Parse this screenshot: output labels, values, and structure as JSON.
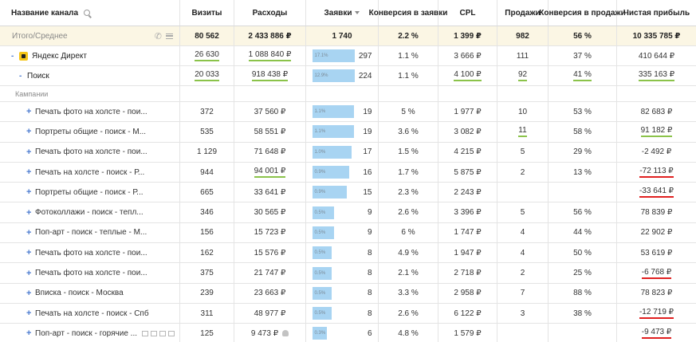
{
  "header": {
    "channel": "Название канала",
    "visits": "Визиты",
    "expenses": "Расходы",
    "leads": "Заявки",
    "conv_leads": "Конверсия в заявки",
    "cpl": "CPL",
    "sales": "Продажи",
    "conv_sales": "Конверсия в продажи",
    "profit": "Чистая прибыль"
  },
  "total": {
    "label": "Итого/Среднее",
    "visits": "80 562",
    "expenses": "2 433 886 ₽",
    "leads": "1 740",
    "conv_leads": "2.2 %",
    "cpl": "1 399 ₽",
    "sales": "982",
    "conv_sales": "56 %",
    "profit": "10 335 785 ₽"
  },
  "levels": [
    {
      "toggle": "-",
      "name": "Яндекс Директ",
      "visits": "26 630",
      "expenses": "1 088 840 ₽",
      "lead_pct": "17.1%",
      "lead_fill": 0.71,
      "leads": "297",
      "conv_leads": "1.1 %",
      "cpl": "3 666 ₽",
      "sales": "111",
      "conv_sales": "37 %",
      "profit": "410 644 ₽"
    },
    {
      "toggle": "-",
      "name": "Поиск",
      "visits": "20 033",
      "expenses": "918 438 ₽",
      "lead_pct": "12.9%",
      "lead_fill": 0.71,
      "leads": "224",
      "conv_leads": "1.1 %",
      "cpl": "4 100 ₽",
      "sales": "92",
      "conv_sales": "41 %",
      "profit": "335 163 ₽"
    }
  ],
  "section_label": "Кампании",
  "campaigns": [
    {
      "name": "Печать фото на холсте - пои...",
      "visits": "372",
      "expenses": "37 560 ₽",
      "lead_pct": "1.1%",
      "lead_fill": 0.7,
      "leads": "19",
      "conv_leads": "5 %",
      "cpl": "1 977 ₽",
      "sales": "10",
      "conv_sales": "53 %",
      "profit": "82 683 ₽"
    },
    {
      "name": "Портреты общие - поиск - М...",
      "visits": "535",
      "expenses": "58 551 ₽",
      "lead_pct": "1.1%",
      "lead_fill": 0.7,
      "leads": "19",
      "conv_leads": "3.6 %",
      "cpl": "3 082 ₽",
      "sales": "11",
      "conv_sales": "58 %",
      "profit": "91 182 ₽"
    },
    {
      "name": "Печать фото на холсте - пои...",
      "visits": "1 129",
      "expenses": "71 648 ₽",
      "lead_pct": "1.0%",
      "lead_fill": 0.66,
      "leads": "17",
      "conv_leads": "1.5 %",
      "cpl": "4 215 ₽",
      "sales": "5",
      "conv_sales": "29 %",
      "profit": "-2 492 ₽"
    },
    {
      "name": "Печать на холсте - поиск - Р...",
      "visits": "944",
      "expenses": "94 001 ₽",
      "lead_pct": "0.9%",
      "lead_fill": 0.62,
      "leads": "16",
      "conv_leads": "1.7 %",
      "cpl": "5 875 ₽",
      "sales": "2",
      "conv_sales": "13 %",
      "profit": "-72 113 ₽"
    },
    {
      "name": "Портреты общие - поиск - Р...",
      "visits": "665",
      "expenses": "33 641 ₽",
      "lead_pct": "0.9%",
      "lead_fill": 0.58,
      "leads": "15",
      "conv_leads": "2.3 %",
      "cpl": "2 243 ₽",
      "sales": "",
      "conv_sales": "",
      "profit": "-33 641 ₽"
    },
    {
      "name": "Фотоколлажи - поиск - тепл...",
      "visits": "346",
      "expenses": "30 565 ₽",
      "lead_pct": "0.5%",
      "lead_fill": 0.36,
      "leads": "9",
      "conv_leads": "2.6 %",
      "cpl": "3 396 ₽",
      "sales": "5",
      "conv_sales": "56 %",
      "profit": "78 839 ₽"
    },
    {
      "name": "Поп-арт - поиск - теплые - М...",
      "visits": "156",
      "expenses": "15 723 ₽",
      "lead_pct": "0.5%",
      "lead_fill": 0.36,
      "leads": "9",
      "conv_leads": "6 %",
      "cpl": "1 747 ₽",
      "sales": "4",
      "conv_sales": "44 %",
      "profit": "22 902 ₽"
    },
    {
      "name": "Печать фото на холсте - пои...",
      "visits": "162",
      "expenses": "15 576 ₽",
      "lead_pct": "0.5%",
      "lead_fill": 0.33,
      "leads": "8",
      "conv_leads": "4.9 %",
      "cpl": "1 947 ₽",
      "sales": "4",
      "conv_sales": "50 %",
      "profit": "53 619 ₽"
    },
    {
      "name": "Печать фото на холсте - пои...",
      "visits": "375",
      "expenses": "21 747 ₽",
      "lead_pct": "0.5%",
      "lead_fill": 0.33,
      "leads": "8",
      "conv_leads": "2.1 %",
      "cpl": "2 718 ₽",
      "sales": "2",
      "conv_sales": "25 %",
      "profit": "-6 768 ₽"
    },
    {
      "name": "Вписка - поиск - Москва",
      "visits": "239",
      "expenses": "23 663 ₽",
      "lead_pct": "0.5%",
      "lead_fill": 0.33,
      "leads": "8",
      "conv_leads": "3.3 %",
      "cpl": "2 958 ₽",
      "sales": "7",
      "conv_sales": "88 %",
      "profit": "78 823 ₽"
    },
    {
      "name": "Печать на холсте - поиск - Спб",
      "visits": "311",
      "expenses": "48 977 ₽",
      "lead_pct": "0.5%",
      "lead_fill": 0.33,
      "leads": "8",
      "conv_leads": "2.6 %",
      "cpl": "6 122 ₽",
      "sales": "3",
      "conv_sales": "38 %",
      "profit": "-12 719 ₽"
    },
    {
      "name": "Поп-арт - поиск - горячие ...",
      "visits": "125",
      "expenses": "9 473 ₽",
      "lead_pct": "0.3%",
      "lead_fill": 0.25,
      "leads": "6",
      "conv_leads": "4.8 %",
      "cpl": "1 579 ₽",
      "sales": "",
      "conv_sales": "",
      "profit": "-9 473 ₽"
    }
  ],
  "icons": {
    "search": "search-icon",
    "sort": "sort-desc-icon",
    "phone": "phone-icon",
    "menu": "menu-icon",
    "brand": "yandex-direct-icon",
    "user": "user-icon"
  },
  "colors": {
    "accent": "#4b7bd0",
    "bar": "#a8d4f2",
    "total_bg": "#fbf6e4",
    "underline_green": "#8bc34a",
    "underline_red": "#e02020"
  }
}
